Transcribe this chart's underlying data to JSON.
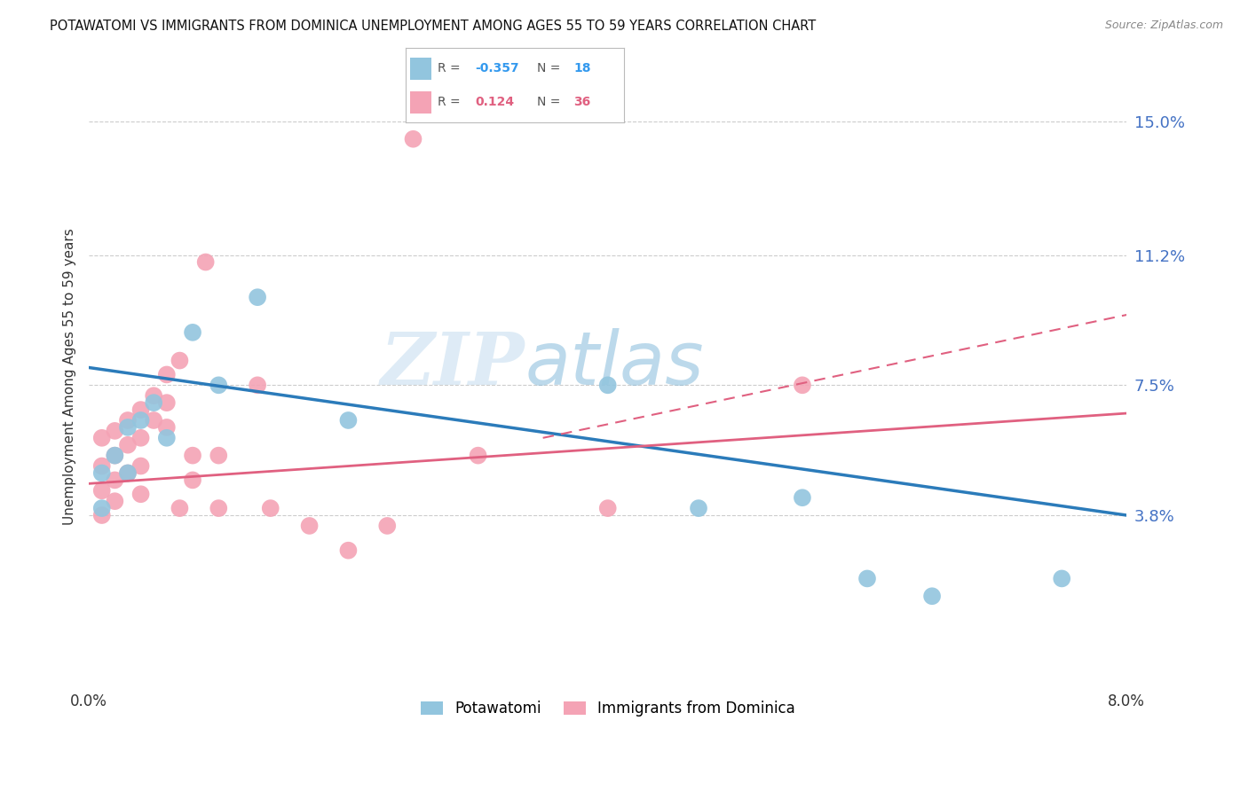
{
  "title": "POTAWATOMI VS IMMIGRANTS FROM DOMINICA UNEMPLOYMENT AMONG AGES 55 TO 59 YEARS CORRELATION CHART",
  "source": "Source: ZipAtlas.com",
  "ylabel": "Unemployment Among Ages 55 to 59 years",
  "ytick_labels": [
    "3.8%",
    "7.5%",
    "11.2%",
    "15.0%"
  ],
  "ytick_values": [
    0.038,
    0.075,
    0.112,
    0.15
  ],
  "xmin": 0.0,
  "xmax": 0.08,
  "ymin": -0.01,
  "ymax": 0.165,
  "legend_label1": "Potawatomi",
  "legend_label2": "Immigrants from Dominica",
  "legend_R1": "-0.357",
  "legend_N1": "18",
  "legend_R2": "0.124",
  "legend_N2": "36",
  "color_blue": "#92c5de",
  "color_pink": "#f4a3b5",
  "blue_scatter_x": [
    0.001,
    0.001,
    0.002,
    0.003,
    0.003,
    0.004,
    0.005,
    0.006,
    0.008,
    0.01,
    0.013,
    0.02,
    0.04,
    0.047,
    0.055,
    0.06,
    0.065,
    0.075
  ],
  "blue_scatter_y": [
    0.05,
    0.04,
    0.055,
    0.063,
    0.05,
    0.065,
    0.07,
    0.06,
    0.09,
    0.075,
    0.1,
    0.065,
    0.075,
    0.04,
    0.043,
    0.02,
    0.015,
    0.02
  ],
  "pink_scatter_x": [
    0.001,
    0.001,
    0.001,
    0.001,
    0.002,
    0.002,
    0.002,
    0.002,
    0.003,
    0.003,
    0.003,
    0.004,
    0.004,
    0.004,
    0.004,
    0.005,
    0.005,
    0.006,
    0.006,
    0.006,
    0.007,
    0.007,
    0.008,
    0.008,
    0.009,
    0.01,
    0.01,
    0.013,
    0.014,
    0.017,
    0.02,
    0.023,
    0.025,
    0.03,
    0.04,
    0.055
  ],
  "pink_scatter_y": [
    0.06,
    0.052,
    0.045,
    0.038,
    0.062,
    0.055,
    0.048,
    0.042,
    0.065,
    0.058,
    0.05,
    0.068,
    0.06,
    0.052,
    0.044,
    0.072,
    0.065,
    0.078,
    0.07,
    0.063,
    0.082,
    0.04,
    0.055,
    0.048,
    0.11,
    0.055,
    0.04,
    0.075,
    0.04,
    0.035,
    0.028,
    0.035,
    0.145,
    0.055,
    0.04,
    0.075
  ],
  "blue_line_x": [
    0.0,
    0.08
  ],
  "blue_line_y": [
    0.08,
    0.038
  ],
  "pink_line_x": [
    0.0,
    0.08
  ],
  "pink_line_y": [
    0.047,
    0.067
  ],
  "pink_dash_line_x": [
    0.035,
    0.08
  ],
  "pink_dash_line_y": [
    0.06,
    0.095
  ],
  "watermark_zip": "ZIP",
  "watermark_atlas": "atlas"
}
